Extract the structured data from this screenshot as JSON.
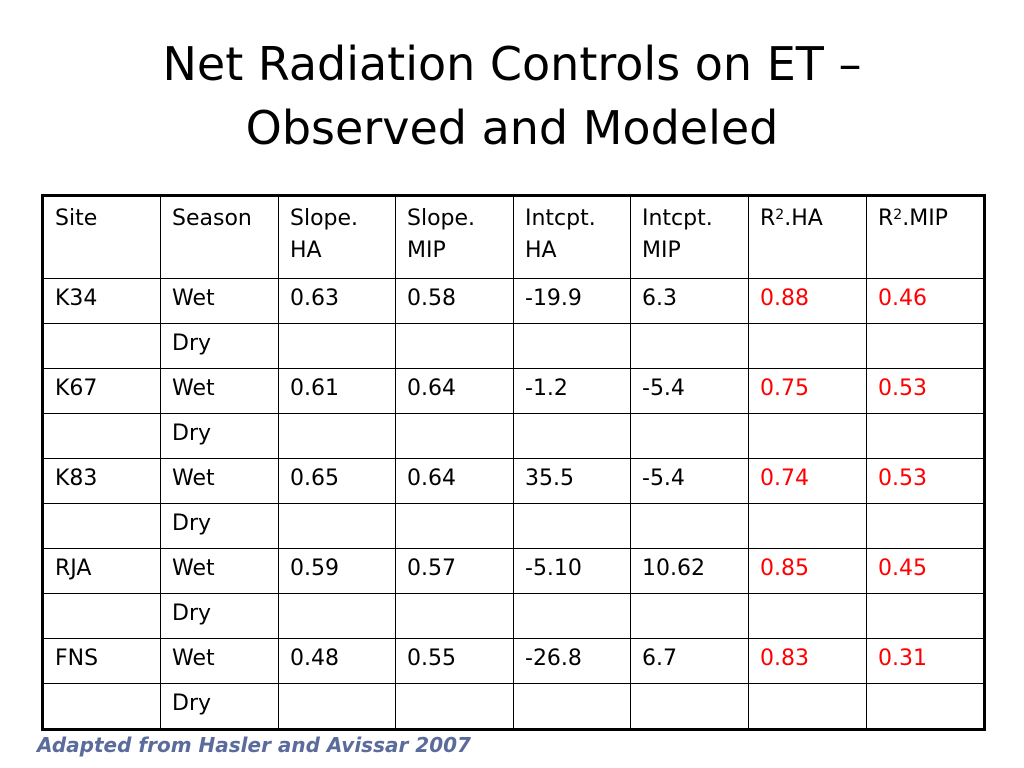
{
  "slide": {
    "title_line1": "Net Radiation Controls on ET –",
    "title_line2": "Observed and Modeled",
    "caption": "Adapted from Hasler and Avissar 2007"
  },
  "table": {
    "headers": [
      {
        "text": "Site"
      },
      {
        "text": "Season"
      },
      {
        "line1": "Slope.",
        "line2": "HA"
      },
      {
        "line1": "Slope.",
        "line2": "MIP"
      },
      {
        "line1": "Intcpt.",
        "line2": "HA"
      },
      {
        "line1": "Intcpt.",
        "line2": "MIP"
      },
      {
        "pre": "R",
        "sup": "2",
        "post": ".HA"
      },
      {
        "pre": "R",
        "sup": "2",
        "post": ".MIP"
      }
    ],
    "rows": [
      [
        "K34",
        "Wet",
        "0.63",
        "0.58",
        "-19.9",
        "6.3",
        "0.88",
        "0.46"
      ],
      [
        "",
        "Dry",
        "",
        "",
        "",
        "",
        "",
        ""
      ],
      [
        "K67",
        "Wet",
        "0.61",
        "0.64",
        "-1.2",
        "-5.4",
        "0.75",
        "0.53"
      ],
      [
        "",
        "Dry",
        "",
        "",
        "",
        "",
        "",
        ""
      ],
      [
        "K83",
        "Wet",
        "0.65",
        "0.64",
        "35.5",
        "-5.4",
        "0.74",
        "0.53"
      ],
      [
        "",
        "Dry",
        "",
        "",
        "",
        "",
        "",
        ""
      ],
      [
        "RJA",
        "Wet",
        "0.59",
        "0.57",
        "-5.10",
        "10.62",
        "0.85",
        "0.45"
      ],
      [
        "",
        "Dry",
        "",
        "",
        "",
        "",
        "",
        ""
      ],
      [
        "FNS",
        "Wet",
        "0.48",
        "0.55",
        "-26.8",
        "6.7",
        "0.83",
        "0.31"
      ],
      [
        "",
        "Dry",
        "",
        "",
        "",
        "",
        "",
        ""
      ]
    ]
  },
  "colors": {
    "highlight": "#ff0000",
    "caption": "#5b6b9b",
    "text": "#000000"
  }
}
